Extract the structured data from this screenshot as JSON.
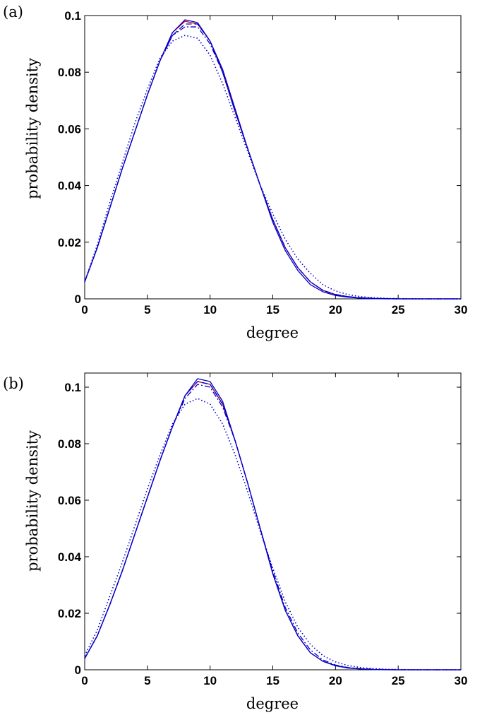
{
  "chart_data": [
    {
      "type": "line",
      "panel_label": "(a)",
      "xlabel": "degree",
      "ylabel": "probability density",
      "xlim": [
        0,
        30
      ],
      "ylim": [
        0,
        0.1
      ],
      "xticks": [
        "0",
        "5",
        "10",
        "15",
        "20",
        "25",
        "30"
      ],
      "yticks": [
        "0",
        "0.02",
        "0.04",
        "0.06",
        "0.08",
        "0.1"
      ],
      "grid": false,
      "x": [
        0,
        1,
        2,
        3,
        4,
        5,
        6,
        7,
        8,
        9,
        10,
        11,
        12,
        13,
        14,
        15,
        16,
        17,
        18,
        19,
        20,
        21,
        22,
        23,
        24,
        25,
        26,
        27,
        28,
        29,
        30
      ],
      "series": [
        {
          "color": "#cc0000",
          "dash": "solid",
          "values": [
            0.006,
            0.018,
            0.032,
            0.046,
            0.059,
            0.072,
            0.084,
            0.094,
            0.098,
            0.097,
            0.091,
            0.08,
            0.066,
            0.053,
            0.04,
            0.028,
            0.018,
            0.011,
            0.006,
            0.003,
            0.0015,
            0.0007,
            0.0003,
            0.0001,
            5e-05,
            0,
            0,
            0,
            0,
            0,
            0
          ]
        },
        {
          "color": "#0000cc",
          "dash": "solid",
          "values": [
            0.006,
            0.018,
            0.032,
            0.046,
            0.059,
            0.072,
            0.084,
            0.094,
            0.0985,
            0.0975,
            0.091,
            0.081,
            0.067,
            0.053,
            0.04,
            0.027,
            0.017,
            0.01,
            0.005,
            0.0025,
            0.0012,
            0.0006,
            0.0002,
            0.0001,
            0,
            0,
            0,
            0,
            0,
            0,
            0
          ]
        },
        {
          "color": "#0000cc",
          "dash": "dash",
          "values": [
            0.006,
            0.018,
            0.032,
            0.046,
            0.059,
            0.072,
            0.084,
            0.093,
            0.097,
            0.097,
            0.091,
            0.08,
            0.066,
            0.053,
            0.04,
            0.028,
            0.018,
            0.011,
            0.006,
            0.003,
            0.0015,
            0.0008,
            0.0004,
            0.0002,
            0.0001,
            0,
            0,
            0,
            0,
            0,
            0
          ]
        },
        {
          "color": "#0000cc",
          "dash": "dashdot",
          "values": [
            0.006,
            0.018,
            0.032,
            0.046,
            0.059,
            0.072,
            0.084,
            0.093,
            0.096,
            0.096,
            0.09,
            0.08,
            0.066,
            0.053,
            0.04,
            0.028,
            0.018,
            0.011,
            0.006,
            0.003,
            0.0016,
            0.0008,
            0.0004,
            0.0002,
            0.0001,
            0,
            0,
            0,
            0,
            0,
            0
          ]
        },
        {
          "color": "#0000cc",
          "dash": "dot",
          "values": [
            0.006,
            0.019,
            0.034,
            0.048,
            0.062,
            0.074,
            0.085,
            0.091,
            0.093,
            0.092,
            0.086,
            0.076,
            0.064,
            0.052,
            0.04,
            0.03,
            0.021,
            0.014,
            0.009,
            0.005,
            0.0028,
            0.0015,
            0.0008,
            0.0004,
            0.0002,
            0.0001,
            5e-05,
            0,
            0,
            0,
            0
          ]
        }
      ]
    },
    {
      "type": "line",
      "panel_label": "(b)",
      "xlabel": "degree",
      "ylabel": "probability density",
      "xlim": [
        0,
        30
      ],
      "ylim": [
        0,
        0.105
      ],
      "xticks": [
        "0",
        "5",
        "10",
        "15",
        "20",
        "25",
        "30"
      ],
      "yticks": [
        "0",
        "0.02",
        "0.04",
        "0.06",
        "0.08",
        "0.1"
      ],
      "grid": false,
      "x": [
        0,
        1,
        2,
        3,
        4,
        5,
        6,
        7,
        8,
        9,
        10,
        11,
        12,
        13,
        14,
        15,
        16,
        17,
        18,
        19,
        20,
        21,
        22,
        23,
        24,
        25,
        26,
        27,
        28,
        29,
        30
      ],
      "series": [
        {
          "color": "#cc0000",
          "dash": "solid",
          "values": [
            0.004,
            0.012,
            0.023,
            0.035,
            0.048,
            0.061,
            0.074,
            0.086,
            0.097,
            0.102,
            0.101,
            0.094,
            0.081,
            0.066,
            0.05,
            0.034,
            0.021,
            0.012,
            0.006,
            0.003,
            0.0015,
            0.0007,
            0.0003,
            0.0001,
            5e-05,
            0,
            0,
            0,
            0,
            0,
            0
          ]
        },
        {
          "color": "#0000cc",
          "dash": "solid",
          "values": [
            0.004,
            0.012,
            0.023,
            0.035,
            0.048,
            0.061,
            0.074,
            0.086,
            0.097,
            0.103,
            0.102,
            0.095,
            0.081,
            0.066,
            0.05,
            0.034,
            0.021,
            0.012,
            0.006,
            0.003,
            0.0014,
            0.0006,
            0.0003,
            0.0001,
            0,
            0,
            0,
            0,
            0,
            0,
            0
          ]
        },
        {
          "color": "#0000cc",
          "dash": "dash",
          "values": [
            0.004,
            0.012,
            0.023,
            0.035,
            0.048,
            0.061,
            0.074,
            0.086,
            0.097,
            0.102,
            0.101,
            0.094,
            0.081,
            0.066,
            0.05,
            0.034,
            0.021,
            0.012,
            0.006,
            0.003,
            0.0015,
            0.0007,
            0.0003,
            0.0001,
            5e-05,
            0,
            0,
            0,
            0,
            0,
            0
          ]
        },
        {
          "color": "#0000cc",
          "dash": "dashdot",
          "values": [
            0.004,
            0.012,
            0.023,
            0.035,
            0.048,
            0.061,
            0.074,
            0.086,
            0.096,
            0.101,
            0.1,
            0.093,
            0.081,
            0.066,
            0.05,
            0.035,
            0.022,
            0.013,
            0.007,
            0.0035,
            0.0017,
            0.0008,
            0.0004,
            0.0002,
            0.0001,
            0,
            0,
            0,
            0,
            0,
            0
          ]
        },
        {
          "color": "#0000cc",
          "dash": "dot",
          "values": [
            0.005,
            0.014,
            0.026,
            0.038,
            0.051,
            0.064,
            0.076,
            0.087,
            0.094,
            0.096,
            0.094,
            0.087,
            0.076,
            0.063,
            0.049,
            0.036,
            0.024,
            0.015,
            0.009,
            0.005,
            0.0028,
            0.0015,
            0.0008,
            0.0004,
            0.0002,
            0.0001,
            5e-05,
            0,
            0,
            0,
            0
          ]
        }
      ]
    }
  ]
}
